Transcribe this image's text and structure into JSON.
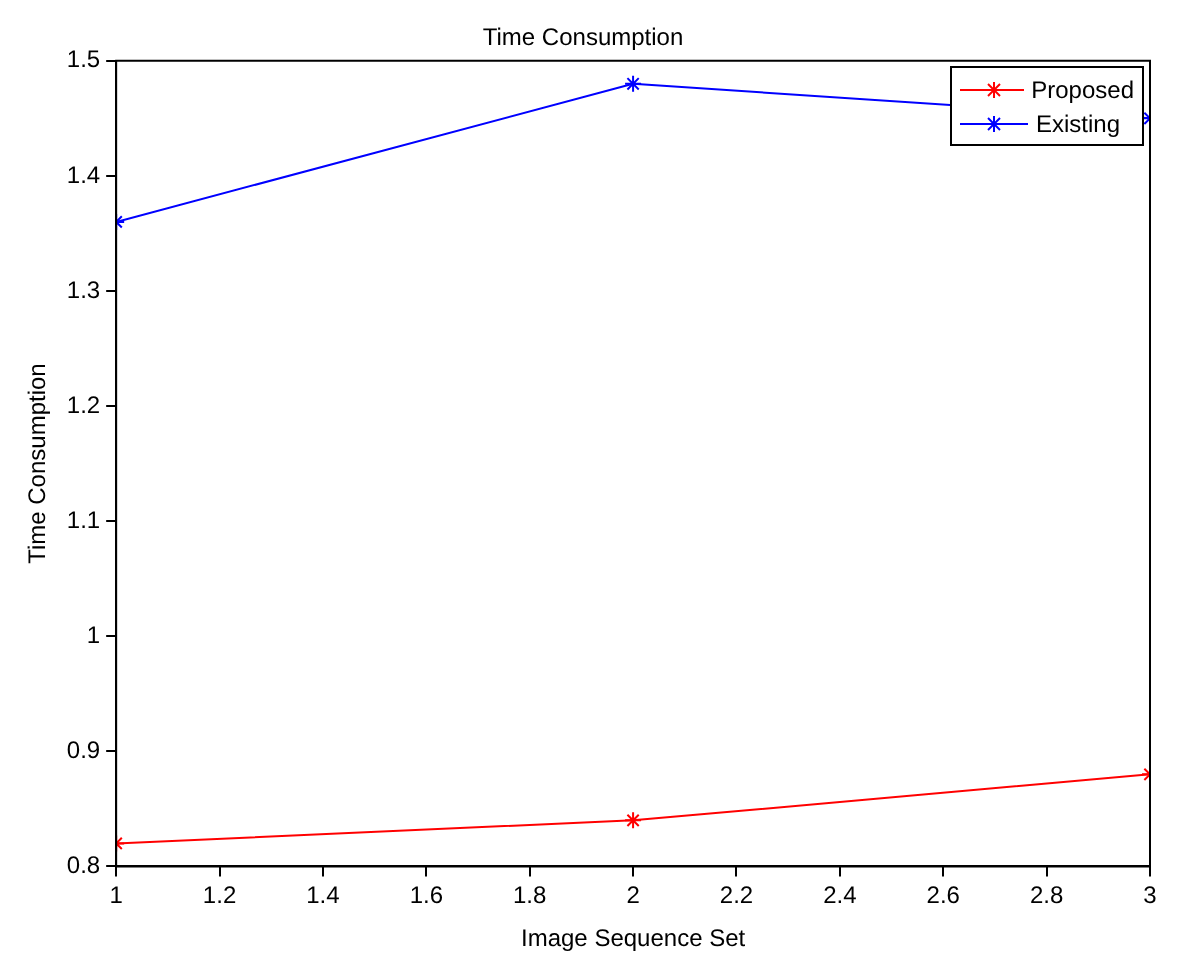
{
  "chart_data": {
    "type": "line",
    "title": "Time Consumption",
    "xlabel": "Image Sequence Set",
    "ylabel": "Time Consumption",
    "x": [
      1,
      2,
      3
    ],
    "series": [
      {
        "name": "Proposed",
        "color": "#ff0000",
        "values": [
          0.82,
          0.84,
          0.88
        ]
      },
      {
        "name": "Existing",
        "color": "#0000ff",
        "values": [
          1.36,
          1.48,
          1.45
        ]
      }
    ],
    "xlim": [
      1,
      3
    ],
    "xticks": [
      1,
      1.2,
      1.4,
      1.6,
      1.8,
      2,
      2.2,
      2.4,
      2.6,
      2.8,
      3
    ],
    "ylim": [
      0.8,
      1.5
    ],
    "yticks": [
      0.8,
      0.9,
      1,
      1.1,
      1.2,
      1.3,
      1.4,
      1.5
    ],
    "grid": false,
    "legend": "top right",
    "marker": "cross",
    "line_style": "solid"
  }
}
